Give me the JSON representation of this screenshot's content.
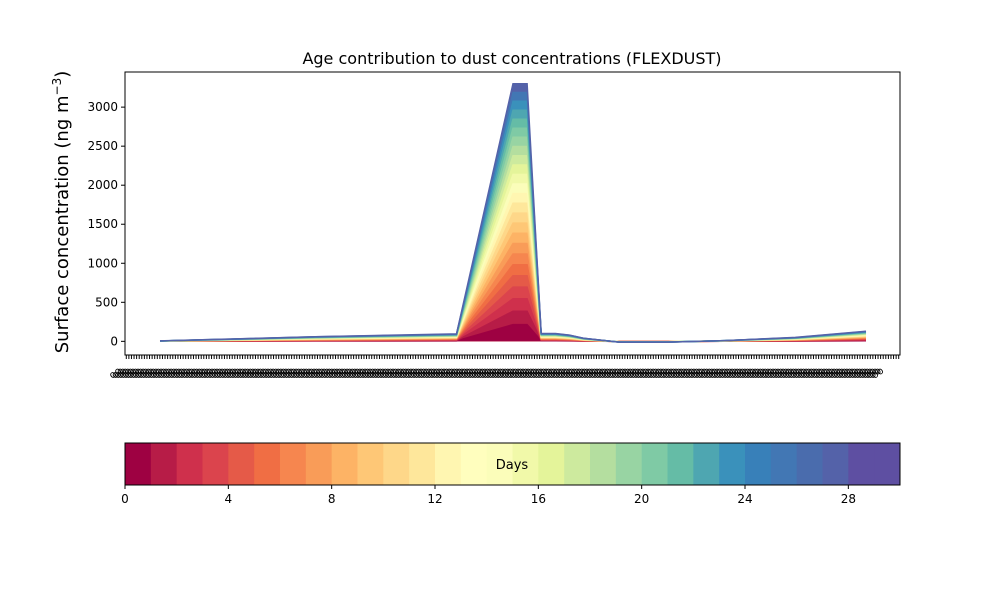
{
  "chart_data": {
    "type": "area",
    "title": "Age contribution to dust concentrations (FLEXDUST)",
    "ylabel": "Surface concentration (ng m",
    "ylabel_sup": "−3",
    "ylabel_close": ")",
    "ylim": [
      -175,
      3450
    ],
    "yticks": [
      0,
      500,
      1000,
      1500,
      2000,
      2500,
      3000
    ],
    "grid": false,
    "x_tick_label_count": 300,
    "x_tick_label_text": "o",
    "series_colors": [
      "#9e0142",
      "#b71c47",
      "#cf304c",
      "#db444d",
      "#e55a48",
      "#f06e44",
      "#f6864f",
      "#f99c58",
      "#fdb365",
      "#fec776",
      "#fed789",
      "#fee79b",
      "#fff6b1",
      "#fbfdba",
      "#f1f9a9",
      "#e4f49a",
      "#cdea9e",
      "#b4de9f",
      "#98d4a3",
      "#7fcaa5",
      "#65bca6",
      "#4ea6b1",
      "#3a91bb",
      "#4277b4",
      "#5462a9"
    ],
    "total_series": {
      "x": [
        0,
        6,
        10,
        22,
        42,
        50,
        52,
        54,
        56,
        58,
        60,
        65,
        72,
        80,
        90,
        100
      ],
      "y": [
        5,
        20,
        30,
        60,
        95,
        3300,
        3300,
        100,
        100,
        80,
        40,
        -10,
        -10,
        10,
        50,
        130
      ]
    },
    "colorbar": {
      "label": "Days",
      "min": 0,
      "max": 30,
      "ticks": [
        0,
        4,
        8,
        12,
        16,
        20,
        24,
        28
      ],
      "colors": [
        "#9e0142",
        "#b71c47",
        "#cf304c",
        "#db444d",
        "#e55a48",
        "#f06e44",
        "#f6864f",
        "#f99c58",
        "#fdb365",
        "#fec776",
        "#fed789",
        "#fee79b",
        "#fff6b1",
        "#fffebe",
        "#fbfdba",
        "#f1f9a9",
        "#e4f49a",
        "#cdea9e",
        "#b4de9f",
        "#98d4a3",
        "#7fcaa5",
        "#65bca6",
        "#4ea6b1",
        "#3a91bb",
        "#3880b9",
        "#4277b4",
        "#4a6cad",
        "#5462a9",
        "#5e4fa2",
        "#5e4fa2"
      ]
    }
  }
}
